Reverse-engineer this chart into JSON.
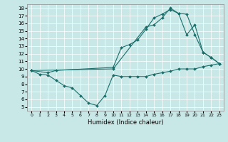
{
  "xlabel": "Humidex (Indice chaleur)",
  "bg_color": "#c8e8e8",
  "line_color": "#1a6e6a",
  "xlim": [
    -0.5,
    23.5
  ],
  "ylim": [
    4.5,
    18.5
  ],
  "xticks": [
    0,
    1,
    2,
    3,
    4,
    5,
    6,
    7,
    8,
    9,
    10,
    11,
    12,
    13,
    14,
    15,
    16,
    17,
    18,
    19,
    20,
    21,
    22,
    23
  ],
  "yticks": [
    5,
    6,
    7,
    8,
    9,
    10,
    11,
    12,
    13,
    14,
    15,
    16,
    17,
    18
  ],
  "line1_x": [
    0,
    1,
    2,
    3,
    4,
    5,
    6,
    7,
    8,
    9,
    10,
    11,
    12,
    13,
    14,
    15,
    16,
    17,
    18,
    19,
    20,
    21,
    22,
    23
  ],
  "line1_y": [
    9.8,
    9.3,
    9.2,
    8.5,
    7.8,
    7.5,
    6.5,
    5.5,
    5.2,
    6.5,
    9.2,
    9.0,
    9.0,
    9.0,
    9.0,
    9.3,
    9.5,
    9.7,
    10.0,
    10.0,
    10.0,
    10.3,
    10.5,
    10.7
  ],
  "line2_x": [
    0,
    2,
    3,
    10,
    11,
    12,
    13,
    14,
    15,
    16,
    17,
    18,
    19,
    20,
    21,
    22,
    23
  ],
  "line2_y": [
    9.8,
    9.5,
    9.8,
    10.2,
    12.8,
    13.2,
    13.8,
    15.2,
    16.7,
    17.2,
    17.8,
    17.3,
    14.5,
    15.8,
    12.2,
    11.5,
    10.7
  ],
  "line3_x": [
    0,
    10,
    14,
    15,
    16,
    17,
    18,
    19,
    20,
    21,
    22,
    23
  ],
  "line3_y": [
    9.8,
    10.0,
    15.5,
    15.8,
    16.7,
    18.0,
    17.3,
    17.2,
    14.5,
    12.2,
    11.5,
    10.7
  ]
}
